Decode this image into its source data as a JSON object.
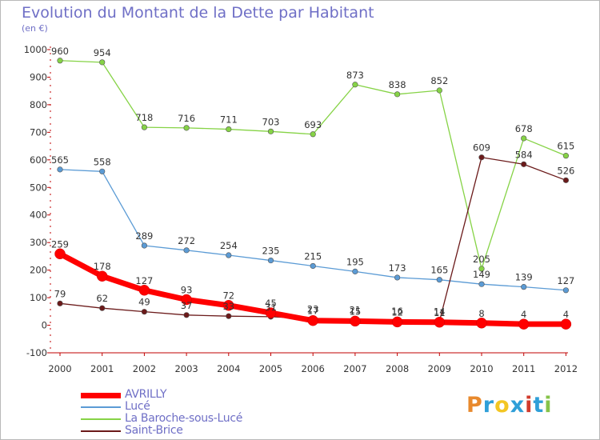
{
  "title": "Evolution du Montant de la Dette par Habitant",
  "subtitle": "(en €)",
  "logo": {
    "text": "Proxiti",
    "letters": [
      {
        "ch": "P",
        "color": "#e8892d"
      },
      {
        "ch": "r",
        "color": "#2f9fd8"
      },
      {
        "ch": "o",
        "color": "#f3c623"
      },
      {
        "ch": "x",
        "color": "#2f9fd8"
      },
      {
        "ch": "i",
        "color": "#d13b2d"
      },
      {
        "ch": "t",
        "color": "#2f9fd8"
      },
      {
        "ch": "i",
        "color": "#86c34a"
      }
    ]
  },
  "chart_data": {
    "type": "line",
    "title": "Evolution du Montant de la Dette par Habitant",
    "subtitle": "(en €)",
    "x": [
      "2000",
      "2001",
      "2002",
      "2003",
      "2004",
      "2005",
      "2006",
      "2007",
      "2008",
      "2009",
      "2010",
      "2011",
      "2012"
    ],
    "ylim": [
      -100,
      1000
    ],
    "yticks": [
      -100,
      0,
      100,
      200,
      300,
      400,
      500,
      600,
      700,
      800,
      900,
      1000
    ],
    "grid": false,
    "legend_position": "bottom-left",
    "series": [
      {
        "name": "AVRILLY",
        "color": "#ff0000",
        "values": [
          259,
          178,
          127,
          93,
          72,
          45,
          17,
          15,
          12,
          11,
          8,
          4,
          4
        ],
        "labels": [
          "259",
          "178",
          "127",
          "93",
          "72",
          "45",
          "17",
          "15",
          "12",
          "11",
          "8",
          "4",
          "4"
        ]
      },
      {
        "name": "Lucé",
        "color": "#5b9bd5",
        "values": [
          565,
          558,
          289,
          272,
          254,
          235,
          215,
          195,
          173,
          165,
          149,
          139,
          127
        ],
        "labels": [
          "565",
          "558",
          "289",
          "272",
          "254",
          "235",
          "215",
          "195",
          "173",
          "165",
          "149",
          "139",
          "127"
        ]
      },
      {
        "name": "La Baroche-sous-Lucé",
        "color": "#86d346",
        "values": [
          960,
          954,
          718,
          716,
          711,
          703,
          693,
          873,
          838,
          852,
          205,
          678,
          615
        ],
        "labels": [
          "960",
          "954",
          "718",
          "716",
          "711",
          "703",
          "693",
          "873",
          "838",
          "852",
          "205",
          "678",
          "615"
        ]
      },
      {
        "name": "Saint-Brice",
        "color": "#6b1a1a",
        "values": [
          79,
          62,
          49,
          37,
          33,
          31,
          23,
          21,
          16,
          14,
          609,
          584,
          526
        ],
        "labels": [
          "79",
          "62",
          "49",
          "37",
          "33",
          "31",
          "23",
          "21",
          "16",
          "14",
          "609",
          "584",
          "526"
        ]
      }
    ],
    "tick_labels_y": [
      "-100",
      "0",
      "100",
      "200",
      "300",
      "400",
      "500",
      "600",
      "700",
      "800",
      "900",
      "1000"
    ]
  }
}
